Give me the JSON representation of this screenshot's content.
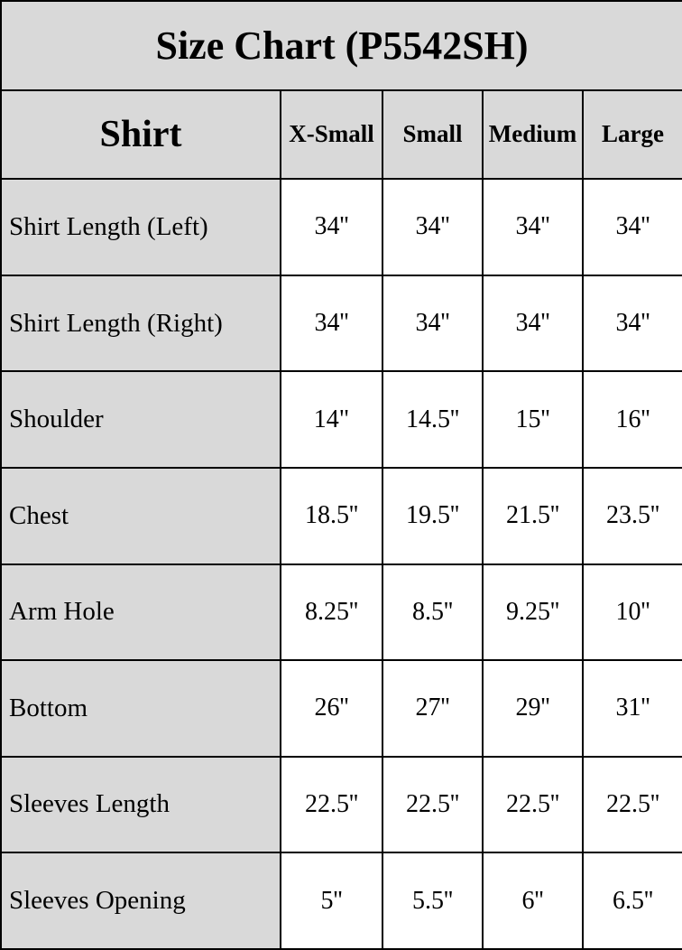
{
  "title": "Size Chart (P5542SH)",
  "colors": {
    "header_and_label_background": "#d9d9d9",
    "value_cell_background": "#ffffff",
    "grid_border": "#000000",
    "text": "#000000"
  },
  "chart_data": {
    "type": "table",
    "title": "Size Chart (P5542SH)",
    "corner_header": "Shirt",
    "columns": [
      "X-Small",
      "Small",
      "Medium",
      "Large"
    ],
    "rows": [
      {
        "label": "Shirt Length (Left)",
        "values": [
          "34''",
          "34''",
          "34''",
          "34''"
        ]
      },
      {
        "label": "Shirt Length (Right)",
        "values": [
          "34''",
          "34''",
          "34''",
          "34''"
        ]
      },
      {
        "label": "Shoulder",
        "values": [
          "14\"",
          "14.5''",
          "15''",
          "16''"
        ]
      },
      {
        "label": "Chest",
        "values": [
          "18.5''",
          "19.5''",
          "21.5''",
          "23.5''"
        ]
      },
      {
        "label": "Arm Hole",
        "values": [
          "8.25''",
          "8.5''",
          "9.25''",
          "10''"
        ]
      },
      {
        "label": "Bottom",
        "values": [
          "26''",
          "27''",
          "29''",
          "31''"
        ]
      },
      {
        "label": "Sleeves Length",
        "values": [
          "22.5''",
          "22.5''",
          "22.5''",
          "22.5''"
        ]
      },
      {
        "label": "Sleeves Opening",
        "values": [
          "5''",
          "5.5''",
          "6''",
          "6.5''"
        ]
      }
    ]
  }
}
